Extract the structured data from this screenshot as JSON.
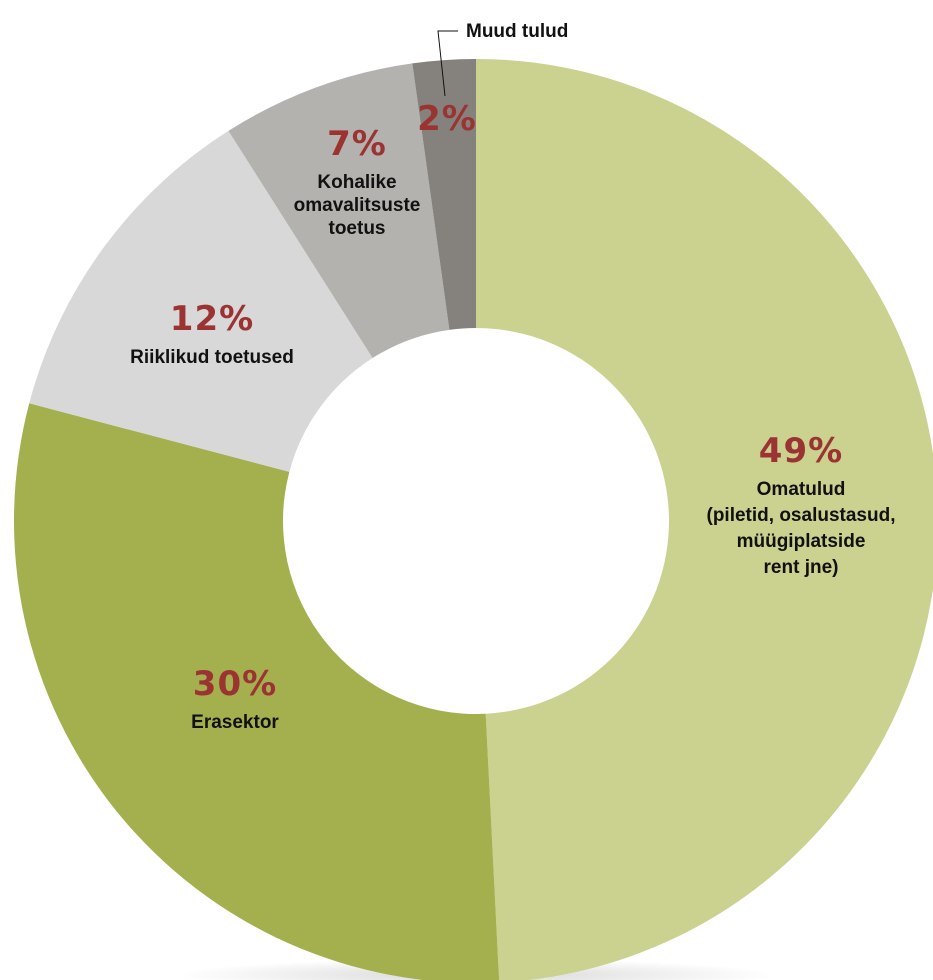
{
  "chart_data": {
    "type": "pie",
    "donut": true,
    "start_angle_deg": 0,
    "direction": "clockwise",
    "legend": "none",
    "percent_color": "#9b3333",
    "slices": [
      {
        "percent_label": "49%",
        "label_lines": [
          "Omatulud",
          "(piletid, osalustasud,",
          "müügiplatside",
          "rent jne)"
        ],
        "value": 49.2,
        "color": "#cbd18f"
      },
      {
        "percent_label": "30%",
        "label_lines": [
          "Erasektor"
        ],
        "value": 29.9,
        "color": "#a4b04e"
      },
      {
        "percent_label": "12%",
        "label_lines": [
          "Riiklikud toetused"
        ],
        "value": 11.9,
        "color": "#d8d8d8"
      },
      {
        "percent_label": "7%",
        "label_lines": [
          "Kohalike",
          "omavalitsuste",
          "toetus"
        ],
        "value": 6.8,
        "color": "#b3b2ae"
      },
      {
        "percent_label": "2%",
        "label_lines": [],
        "callout_label": "Muud tulud",
        "value": 2.2,
        "color": "#85827e"
      }
    ]
  }
}
